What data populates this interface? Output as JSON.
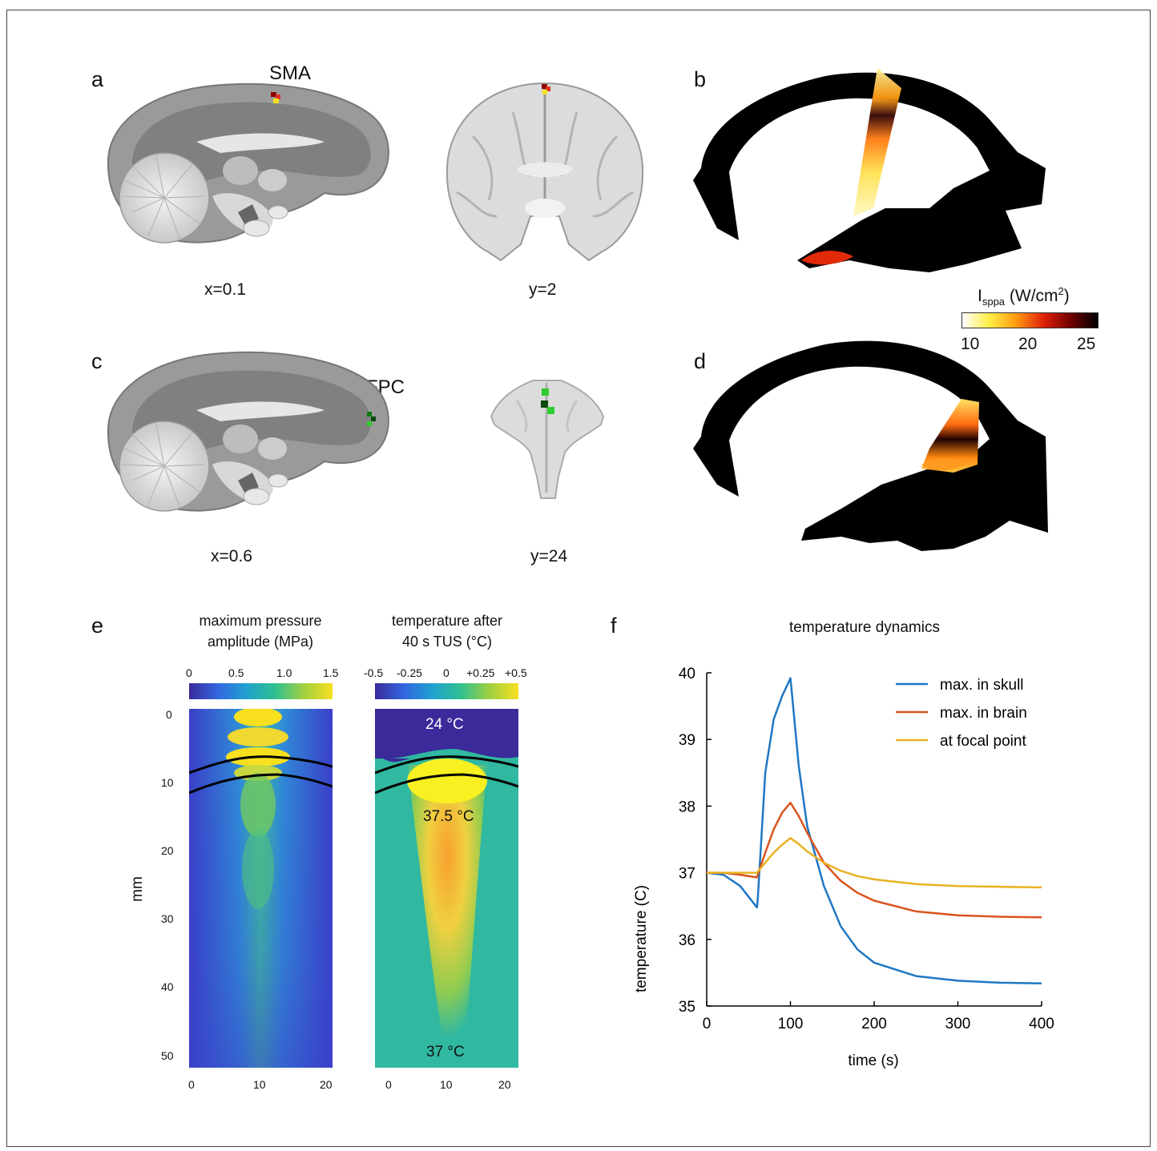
{
  "panels": {
    "a": {
      "letter": "a",
      "region": "SMA",
      "sagittal_coord": "x=0.1",
      "coronal_coord": "y=2"
    },
    "b": {
      "letter": "b",
      "colorbar": {
        "label_main": "I",
        "label_sub": "sppa",
        "label_unit": " (W/cm",
        "label_sup": "2",
        "label_close": ")",
        "ticks": [
          "10",
          "20",
          "25"
        ],
        "colors": [
          "#ffffff",
          "#ffee44",
          "#ff9a10",
          "#e0200a",
          "#700000",
          "#000000"
        ]
      }
    },
    "c": {
      "letter": "c",
      "region": "FPC",
      "sagittal_coord": "x=0.6",
      "coronal_coord": "y=24"
    },
    "d": {
      "letter": "d"
    },
    "e": {
      "letter": "e",
      "pressure": {
        "title_line1": "maximum pressure",
        "title_line2": "amplitude (MPa)",
        "colorbar_ticks": [
          "0",
          "0.5",
          "1.0",
          "1.5"
        ]
      },
      "temperature": {
        "title_line1": "temperature after",
        "title_line2": "40 s TUS (°C)",
        "colorbar_ticks": [
          "-0.5",
          "-0.25",
          "0",
          "+0.25",
          "+0.5"
        ],
        "annotation_top": "24 °C",
        "annotation_mid": "37.5 °C",
        "annotation_bottom": "37 °C"
      },
      "y_axis_label": "mm",
      "y_ticks": [
        "0",
        "10",
        "20",
        "30",
        "40",
        "50"
      ],
      "x_ticks": [
        "0",
        "10",
        "20"
      ]
    },
    "f": {
      "letter": "f"
    }
  },
  "chart_data": {
    "type": "line",
    "title": "temperature dynamics",
    "xlabel": "time (s)",
    "ylabel": "temperature (C)",
    "xlim": [
      0,
      400
    ],
    "ylim": [
      35,
      40
    ],
    "x_ticks": [
      "0",
      "100",
      "200",
      "300",
      "400"
    ],
    "y_ticks": [
      "35",
      "36",
      "37",
      "38",
      "39",
      "40"
    ],
    "grid": false,
    "legend_position": "top-right",
    "series": [
      {
        "name": "max. in skull",
        "color": "#1f77c4",
        "x": [
          0,
          20,
          40,
          60,
          61,
          70,
          80,
          90,
          100,
          101,
          110,
          120,
          140,
          160,
          180,
          200,
          250,
          300,
          350,
          400
        ],
        "y": [
          37.0,
          36.97,
          36.8,
          36.48,
          36.6,
          38.5,
          39.3,
          39.65,
          39.92,
          39.8,
          38.6,
          37.7,
          36.8,
          36.2,
          35.85,
          35.65,
          35.45,
          35.38,
          35.35,
          35.34
        ]
      },
      {
        "name": "max. in brain",
        "color": "#d9541e",
        "x": [
          0,
          20,
          40,
          60,
          70,
          80,
          90,
          100,
          110,
          120,
          140,
          160,
          180,
          200,
          250,
          300,
          350,
          400
        ],
        "y": [
          37.0,
          37.0,
          36.97,
          36.93,
          37.3,
          37.65,
          37.9,
          38.05,
          37.85,
          37.6,
          37.15,
          36.88,
          36.7,
          36.58,
          36.42,
          36.36,
          36.34,
          36.33
        ]
      },
      {
        "name": "at focal point",
        "color": "#e8b222",
        "x": [
          0,
          20,
          40,
          60,
          70,
          80,
          90,
          100,
          110,
          120,
          140,
          160,
          180,
          200,
          250,
          300,
          350,
          400
        ],
        "y": [
          37.0,
          37.0,
          37.0,
          37.0,
          37.15,
          37.3,
          37.42,
          37.52,
          37.43,
          37.32,
          37.15,
          37.03,
          36.95,
          36.9,
          36.83,
          36.8,
          36.79,
          36.78
        ]
      }
    ]
  }
}
